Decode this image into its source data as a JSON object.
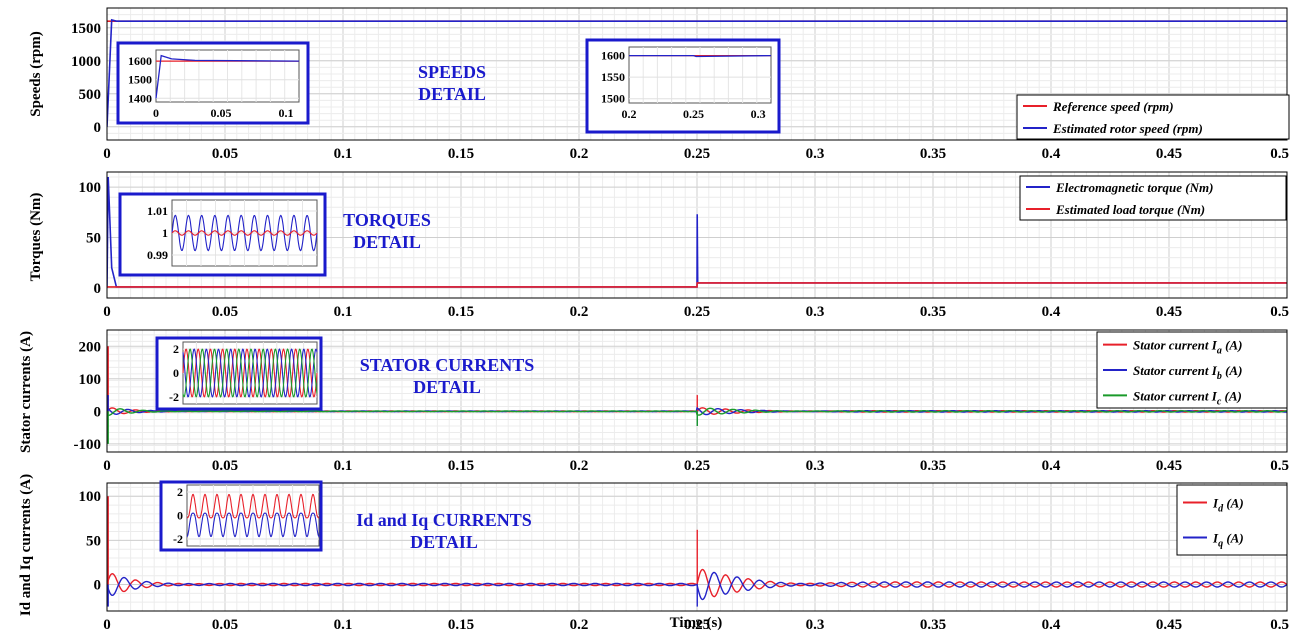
{
  "colors": {
    "red": "#e8202a",
    "blue": "#2323c8",
    "green": "#1a9a2a",
    "detail": "#1a1acc",
    "grid": "#d9d9d9"
  },
  "x_ticks": [
    "0",
    "0.05",
    "0.1",
    "0.15",
    "0.2",
    "0.25",
    "0.3",
    "0.35",
    "0.4",
    "0.45",
    "0.5"
  ],
  "x_axis_label": "Time (s)",
  "chart_data": [
    {
      "type": "line",
      "ylabel": "Speeds (rpm)",
      "ylim": [
        -200,
        1800
      ],
      "y_ticks": [
        0,
        500,
        1000,
        1500
      ],
      "xlim": [
        0,
        0.5
      ],
      "detail_lines": [
        "SPEEDS",
        "DETAIL"
      ],
      "legend_position": "bottom-right",
      "series": [
        {
          "name": "Reference speed (rpm)",
          "color": "red",
          "x": [
            0,
            0.5
          ],
          "y": [
            1600,
            1600
          ]
        },
        {
          "name": "Estimated rotor speed (rpm)",
          "color": "blue",
          "x": [
            0,
            0.002,
            0.004,
            0.5
          ],
          "y": [
            0,
            1620,
            1600,
            1600
          ]
        }
      ],
      "insets": [
        {
          "x_ticks": [
            "0",
            "0.05",
            "0.1"
          ],
          "xlim": [
            0,
            0.11
          ],
          "y_ticks": [
            "1600",
            "1500",
            "1400"
          ],
          "ylim": [
            1380,
            1660
          ],
          "series": [
            {
              "color": "red",
              "x": [
                0,
                0.11
              ],
              "y": [
                1600,
                1600
              ]
            },
            {
              "color": "blue",
              "x": [
                0,
                0.004,
                0.012,
                0.03,
                0.11
              ],
              "y": [
                1400,
                1630,
                1612,
                1604,
                1600
              ]
            }
          ]
        },
        {
          "x_ticks": [
            "0.2",
            "0.25",
            "0.3"
          ],
          "xlim": [
            0.2,
            0.31
          ],
          "y_ticks": [
            "1600",
            "1550",
            "1500"
          ],
          "ylim": [
            1490,
            1620
          ],
          "series": [
            {
              "color": "red",
              "x": [
                0.2,
                0.31
              ],
              "y": [
                1600,
                1600
              ]
            },
            {
              "color": "blue",
              "x": [
                0.2,
                0.25,
                0.252,
                0.31
              ],
              "y": [
                1600,
                1600,
                1598,
                1600
              ]
            }
          ]
        }
      ]
    },
    {
      "type": "line",
      "ylabel": "Torques (Nm)",
      "ylim": [
        -10,
        115
      ],
      "y_ticks": [
        0,
        50,
        100
      ],
      "xlim": [
        0,
        0.5
      ],
      "detail_lines": [
        "TORQUES",
        "DETAIL"
      ],
      "legend_position": "top-right",
      "series": [
        {
          "name": "Electromagnetic torque (Nm)",
          "color": "blue",
          "x": [
            0,
            0.0005,
            0.002,
            0.004,
            0.25,
            0.2501,
            0.2503,
            0.251,
            0.5
          ],
          "y": [
            0,
            110,
            20,
            1,
            1,
            73,
            5,
            5,
            5
          ]
        },
        {
          "name": "Estimated load torque (Nm)",
          "color": "red",
          "x": [
            0,
            0.25,
            0.2501,
            0.5
          ],
          "y": [
            1,
            1,
            5,
            5
          ]
        }
      ],
      "insets": [
        {
          "x_ticks": [],
          "y_ticks": [
            "1.01",
            "1",
            "0.99"
          ],
          "ylim": [
            0.985,
            1.015
          ],
          "oscillation": true,
          "cycles": 11,
          "series": [
            {
              "color": "blue",
              "amp": 0.008
            },
            {
              "color": "red",
              "amp": 0.001
            }
          ]
        }
      ]
    },
    {
      "type": "line",
      "ylabel": "Stator currents (A)",
      "ylim": [
        -125,
        250
      ],
      "y_ticks": [
        -100,
        0,
        100,
        200
      ],
      "xlim": [
        0,
        0.5
      ],
      "detail_lines": [
        "STATOR CURRENTS",
        "DETAIL"
      ],
      "legend_position": "top-right",
      "series": [
        {
          "name": "Stator current Ia (A)",
          "color": "red",
          "sub": "a"
        },
        {
          "name": "Stator current Ib (A)",
          "color": "blue",
          "sub": "b"
        },
        {
          "name": "Stator current Ic (A)",
          "color": "green",
          "sub": "c"
        }
      ],
      "insets": [
        {
          "x_ticks": [],
          "y_ticks": [
            "2",
            "0",
            "-2"
          ],
          "ylim": [
            -2.6,
            2.6
          ],
          "oscillation": true,
          "cycles": 11,
          "three_phase": true
        }
      ]
    },
    {
      "type": "line",
      "ylabel": "Id and Iq currents (A)",
      "ylim": [
        -30,
        115
      ],
      "y_ticks": [
        0,
        50,
        100
      ],
      "xlim": [
        0,
        0.5
      ],
      "detail_lines": [
        "Id and Iq CURRENTS",
        "DETAIL"
      ],
      "legend_position": "top-right",
      "series": [
        {
          "name": "Id (A)",
          "color": "red",
          "sub": "d"
        },
        {
          "name": "Iq (A)",
          "color": "blue",
          "sub": "q"
        }
      ],
      "insets": [
        {
          "x_ticks": [],
          "y_ticks": [
            "2",
            "0",
            "-2"
          ],
          "ylim": [
            -2.6,
            2.6
          ],
          "oscillation": true,
          "cycles": 11,
          "two_phase": true
        }
      ]
    }
  ]
}
